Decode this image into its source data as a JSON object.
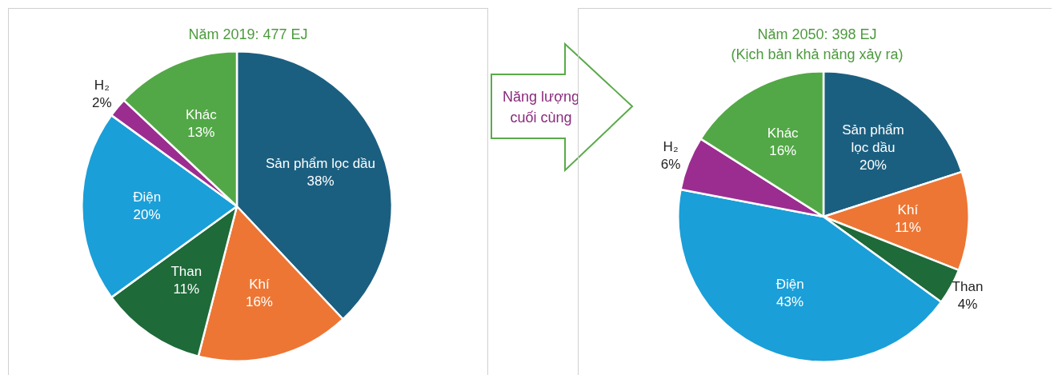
{
  "chart_data": [
    {
      "type": "pie",
      "title": "Năm 2019: 477 EJ",
      "categories": [
        "Sản phẩm lọc dầu",
        "Khí",
        "Than",
        "Điện",
        "H₂",
        "Khác"
      ],
      "values": [
        38,
        16,
        11,
        20,
        2,
        13
      ],
      "value_labels": [
        "38%",
        "16%",
        "11%",
        "20%",
        "2%",
        "13%"
      ],
      "colors": [
        "#1b5f80",
        "#ed7634",
        "#1e6a39",
        "#1a9fd8",
        "#9b2d90",
        "#52a846"
      ]
    },
    {
      "type": "other",
      "annotations": [
        "Năng lượng cuối cùng"
      ]
    },
    {
      "type": "pie",
      "title": "Năm 2050: 398 EJ",
      "subtitle": "(Kịch bản khả năng xảy ra)",
      "categories": [
        "Sản phẩm lọc dầu",
        "Khí",
        "Than",
        "Điện",
        "H₂",
        "Khác"
      ],
      "values": [
        20,
        11,
        4,
        43,
        6,
        16
      ],
      "value_labels": [
        "20%",
        "11%",
        "4%",
        "43%",
        "6%",
        "16%"
      ],
      "colors": [
        "#1b5f80",
        "#ed7634",
        "#1e6a39",
        "#1a9fd8",
        "#9b2d90",
        "#52a846"
      ]
    }
  ]
}
